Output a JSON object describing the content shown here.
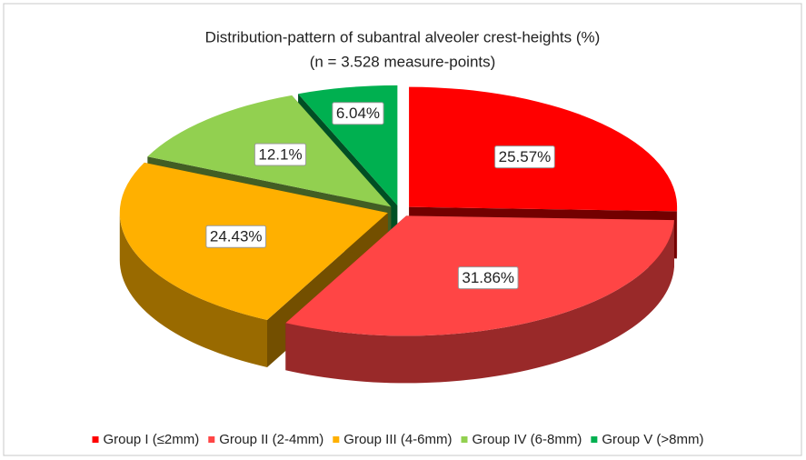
{
  "chart_data": {
    "type": "pie3d",
    "title": "Distribution-pattern of subantral alveoler crest-heights (%)",
    "subtitle": "(n = 3.528 measure-points)",
    "categories": [
      "Group I (≤2mm)",
      "Group II (2-4mm)",
      "Group III (4-6mm)",
      "Group IV (6-8mm)",
      "Group V (>8mm)"
    ],
    "values": [
      25.57,
      31.86,
      24.43,
      12.1,
      6.04
    ],
    "value_labels": [
      "25.57%",
      "31.86%",
      "24.43%",
      "12.1%",
      "6.04%"
    ],
    "colors": [
      "#ff0000",
      "#ff4545",
      "#ffb000",
      "#92d050",
      "#00b050"
    ],
    "legend": "bottom"
  }
}
